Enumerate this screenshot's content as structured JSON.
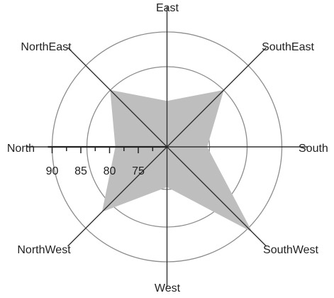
{
  "chart_data": {
    "type": "radar",
    "title": "",
    "categories": [
      "East",
      "SouthEast",
      "South",
      "SouthWest",
      "West",
      "NorthWest",
      "North",
      "NorthEast"
    ],
    "series": [
      {
        "values": [
          78,
          84,
          77,
          91,
          77,
          86,
          79,
          84
        ],
        "color": "#BEBEBE"
      }
    ],
    "radial_axis": {
      "min": 70,
      "max": 90,
      "tick_labels": [
        "90",
        "85",
        "80",
        "75"
      ],
      "tick_values": [
        90,
        85,
        80,
        75
      ],
      "axis_on": "North"
    },
    "grid": "circular",
    "colors": {
      "grid": "#8C8C8C",
      "spoke": "#333333",
      "fill": "#BEBEBE"
    }
  }
}
